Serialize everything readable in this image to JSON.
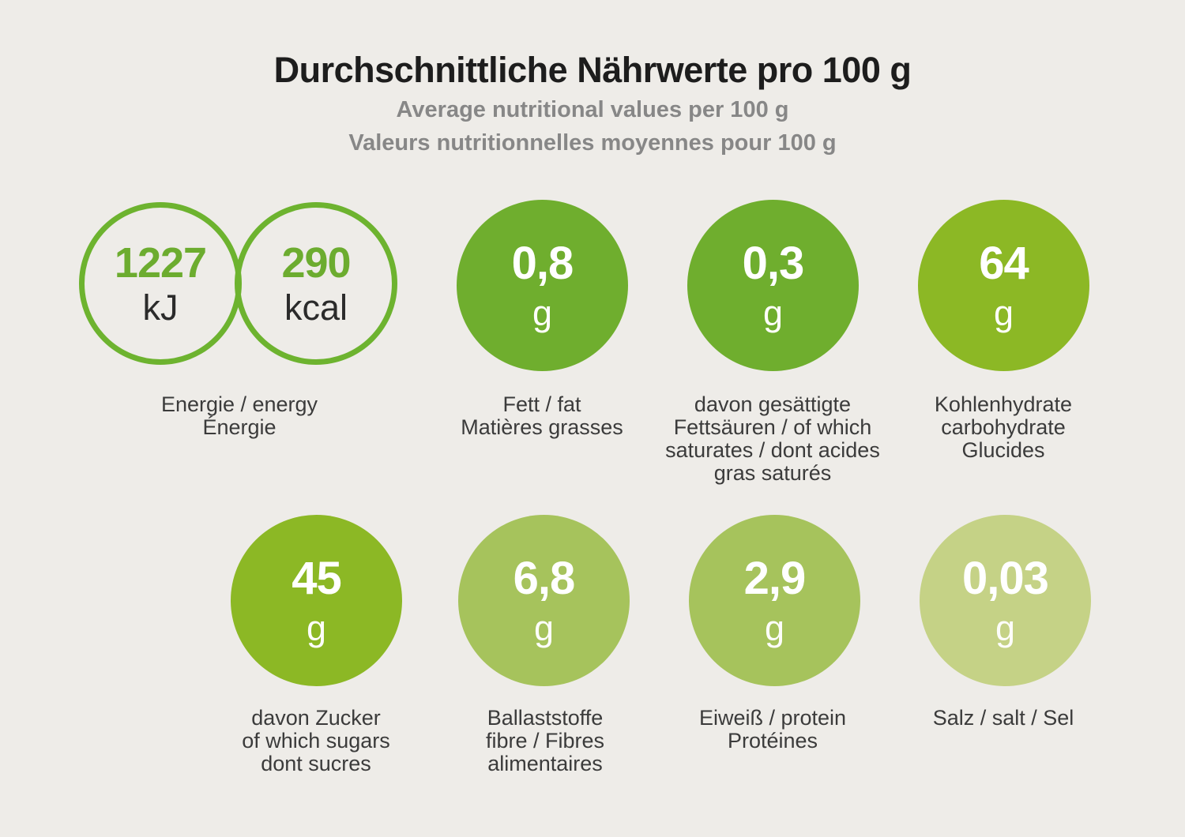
{
  "header": {
    "title": "Durchschnittliche Nährwerte pro 100 g",
    "subtitle_en": "Average nutritional values per 100 g",
    "subtitle_fr": "Valeurs nutritionnelles moyennes pour 100 g"
  },
  "colors": {
    "background": "#eeece8",
    "ring_stroke": "#6db32f",
    "value_green": "#6cac2f",
    "unit_dark": "#2b2b2b",
    "title": "#1d1d1d",
    "subtitle": "#878787",
    "label": "#3b3b3b",
    "green_medium": "#6fae2e",
    "green_mid_yellow": "#8cb825",
    "green_light": "#a6c35c",
    "green_pale": "#c5d286"
  },
  "energy": {
    "kj_value": "1227",
    "kj_unit": "kJ",
    "kcal_value": "290",
    "kcal_unit": "kcal",
    "label_lines": [
      "Energie / energy",
      "Énergie"
    ]
  },
  "nutrients": [
    {
      "id": "fat",
      "value": "0,8",
      "unit": "g",
      "color": "#6fae2e",
      "label_lines": [
        "Fett / fat",
        "Matières grasses"
      ]
    },
    {
      "id": "saturates",
      "value": "0,3",
      "unit": "g",
      "color": "#6fae2e",
      "label_lines": [
        "davon gesättigte",
        "Fettsäuren / of which",
        "saturates / dont acides",
        "gras saturés"
      ]
    },
    {
      "id": "carbohydrate",
      "value": "64",
      "unit": "g",
      "color": "#8cb825",
      "label_lines": [
        "Kohlenhydrate",
        "carbohydrate",
        "Glucides"
      ]
    },
    {
      "id": "sugars",
      "value": "45",
      "unit": "g",
      "color": "#8cb825",
      "label_lines": [
        "davon Zucker",
        "of which sugars",
        "dont sucres"
      ]
    },
    {
      "id": "fibre",
      "value": "6,8",
      "unit": "g",
      "color": "#a6c35c",
      "label_lines": [
        "Ballaststoffe",
        "fibre / Fibres",
        "alimentaires"
      ]
    },
    {
      "id": "protein",
      "value": "2,9",
      "unit": "g",
      "color": "#a6c35c",
      "label_lines": [
        "Eiweiß / protein",
        "Protéines"
      ]
    },
    {
      "id": "salt",
      "value": "0,03",
      "unit": "g",
      "color": "#c5d286",
      "label_lines": [
        "Salz / salt / Sel"
      ]
    }
  ],
  "chart_data": {
    "type": "table",
    "title": "Durchschnittliche Nährwerte pro 100 g",
    "subtitle": [
      "Average nutritional values per 100 g",
      "Valeurs nutritionnelles moyennes pour 100 g"
    ],
    "categories": [
      "Energie (kJ)",
      "Energie (kcal)",
      "Fett / fat",
      "davon gesättigte Fettsäuren / of which saturates",
      "Kohlenhydrate / carbohydrate",
      "davon Zucker / of which sugars",
      "Ballaststoffe / fibre",
      "Eiweiß / protein",
      "Salz / salt"
    ],
    "values": [
      1227,
      290,
      0.8,
      0.3,
      64,
      45,
      6.8,
      2.9,
      0.03
    ],
    "units": [
      "kJ",
      "kcal",
      "g",
      "g",
      "g",
      "g",
      "g",
      "g",
      "g"
    ]
  }
}
